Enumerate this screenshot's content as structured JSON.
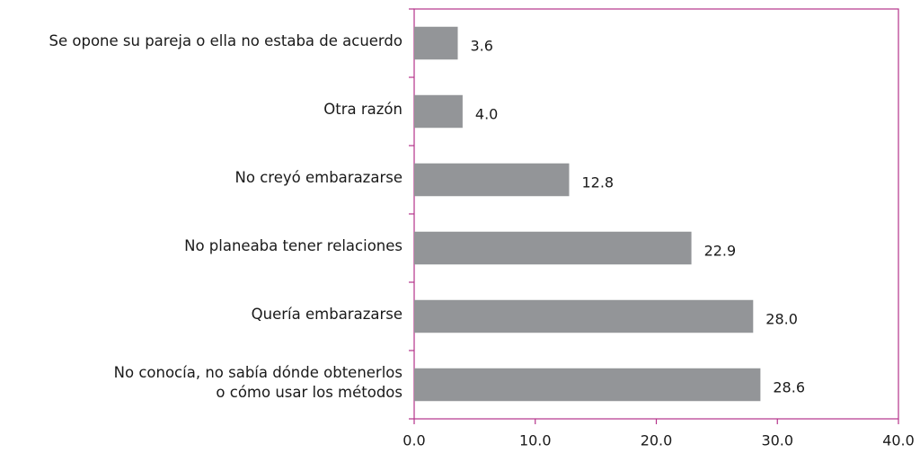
{
  "chart_data": {
    "type": "bar",
    "orientation": "horizontal",
    "categories": [
      "Se opone su pareja o ella no estaba de acuerdo",
      "Otra razón",
      "No creyó embarazarse",
      "No planeaba tener relaciones",
      "Quería embarazarse",
      "No conocía, no sabía dónde obtenerlos\no cómo usar  los métodos"
    ],
    "values": [
      3.6,
      4.0,
      12.8,
      22.9,
      28.0,
      28.6
    ],
    "value_labels": [
      "3.6",
      "4.0",
      "12.8",
      "22.9",
      "28.0",
      "28.6"
    ],
    "color": "#939598",
    "axis_color": "#b5338a",
    "xlim": [
      0,
      40
    ],
    "xticks": [
      {
        "value": 0,
        "label": "0.0"
      },
      {
        "value": 10,
        "label": "10.0"
      },
      {
        "value": 20,
        "label": "20.0"
      },
      {
        "value": 30,
        "label": "30.0"
      },
      {
        "value": 40,
        "label": "40.0"
      }
    ]
  }
}
